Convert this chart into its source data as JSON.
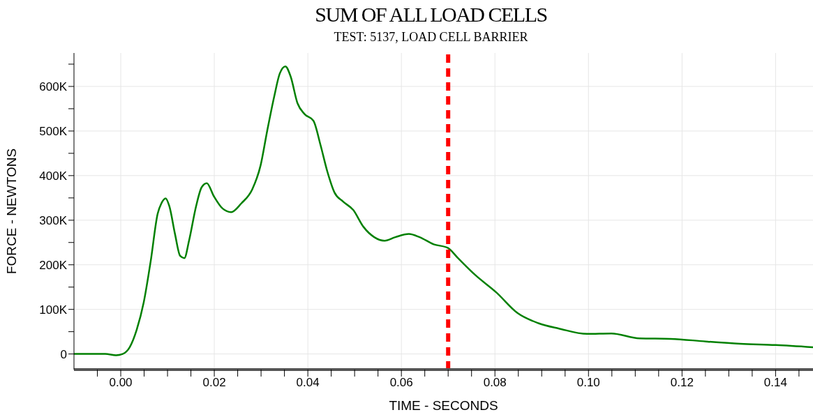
{
  "chart_data": {
    "type": "line",
    "title": "SUM OF ALL LOAD CELLS",
    "subtitle": "TEST: 5137, LOAD CELL BARRIER",
    "xlabel": "TIME - SECONDS",
    "ylabel": "FORCE - NEWTONS",
    "xlim": [
      -0.01,
      0.148
    ],
    "ylim": [
      -35000,
      675000
    ],
    "xticks": [
      {
        "value": -0.005,
        "label": null
      },
      {
        "value": 0,
        "label": "0.00"
      },
      {
        "value": 0.005,
        "label": null
      },
      {
        "value": 0.01,
        "label": null
      },
      {
        "value": 0.015,
        "label": null
      },
      {
        "value": 0.02,
        "label": "0.02"
      },
      {
        "value": 0.025,
        "label": null
      },
      {
        "value": 0.03,
        "label": null
      },
      {
        "value": 0.035,
        "label": null
      },
      {
        "value": 0.04,
        "label": "0.04"
      },
      {
        "value": 0.045,
        "label": null
      },
      {
        "value": 0.05,
        "label": null
      },
      {
        "value": 0.055,
        "label": null
      },
      {
        "value": 0.06,
        "label": "0.06"
      },
      {
        "value": 0.065,
        "label": null
      },
      {
        "value": 0.07,
        "label": null
      },
      {
        "value": 0.075,
        "label": null
      },
      {
        "value": 0.08,
        "label": "0.08"
      },
      {
        "value": 0.085,
        "label": null
      },
      {
        "value": 0.09,
        "label": null
      },
      {
        "value": 0.095,
        "label": null
      },
      {
        "value": 0.1,
        "label": "0.10"
      },
      {
        "value": 0.105,
        "label": null
      },
      {
        "value": 0.11,
        "label": null
      },
      {
        "value": 0.115,
        "label": null
      },
      {
        "value": 0.12,
        "label": "0.12"
      },
      {
        "value": 0.125,
        "label": null
      },
      {
        "value": 0.13,
        "label": null
      },
      {
        "value": 0.135,
        "label": null
      },
      {
        "value": 0.14,
        "label": "0.14"
      },
      {
        "value": 0.145,
        "label": null
      }
    ],
    "yticks": [
      0,
      {
        "value": 50000,
        "label": null
      },
      {
        "value": 100000,
        "label": "100K"
      },
      {
        "value": 150000,
        "label": null
      },
      {
        "value": 200000,
        "label": "200K"
      },
      {
        "value": 250000,
        "label": null
      },
      {
        "value": 300000,
        "label": "300K"
      },
      {
        "value": 350000,
        "label": null
      },
      {
        "value": 400000,
        "label": "400K"
      },
      {
        "value": 450000,
        "label": null
      },
      {
        "value": 500000,
        "label": "500K"
      },
      {
        "value": 550000,
        "label": null
      },
      {
        "value": 600000,
        "label": "600K"
      },
      {
        "value": 650000,
        "label": null
      }
    ],
    "grid": true,
    "marker": "none",
    "line_style": "solid",
    "ref_lines": [
      {
        "axis": "x",
        "value": 0.07,
        "color": "#ff0000",
        "line_style": "dashed"
      }
    ],
    "x": [
      -0.01,
      -0.0033,
      -0.001,
      0.0004,
      0.0019,
      0.0034,
      0.0049,
      0.0064,
      0.0079,
      0.0087,
      0.0096,
      0.0104,
      0.0116,
      0.0127,
      0.0136,
      0.0146,
      0.0161,
      0.0173,
      0.0184,
      0.0199,
      0.0218,
      0.0236,
      0.0258,
      0.0281,
      0.0299,
      0.0313,
      0.0328,
      0.034,
      0.0352,
      0.0363,
      0.0378,
      0.0393,
      0.0412,
      0.0427,
      0.0442,
      0.0457,
      0.0475,
      0.0497,
      0.0519,
      0.0542,
      0.0564,
      0.0587,
      0.0616,
      0.0639,
      0.0669,
      0.0699,
      0.0721,
      0.0758,
      0.0803,
      0.0848,
      0.0893,
      0.0937,
      0.0997,
      0.1049,
      0.1109,
      0.1176,
      0.1251,
      0.1325,
      0.14,
      0.148
    ],
    "series": [
      {
        "color": "#008000",
        "values": [
          0,
          0,
          -3000,
          0,
          15000,
          54000,
          115000,
          208000,
          315000,
          338000,
          349000,
          331000,
          269000,
          220000,
          215000,
          254000,
          331000,
          374000,
          383000,
          354000,
          326000,
          318000,
          338000,
          369000,
          423000,
          500000,
          577000,
          629000,
          645000,
          623000,
          562000,
          538000,
          523000,
          469000,
          408000,
          362000,
          342000,
          323000,
          285000,
          262000,
          254000,
          262000,
          269000,
          262000,
          246000,
          238000,
          215000,
          177000,
          138000,
          92000,
          69000,
          57000,
          45000,
          46000,
          35000,
          34000,
          28000,
          23000,
          20000,
          15000
        ]
      }
    ]
  }
}
